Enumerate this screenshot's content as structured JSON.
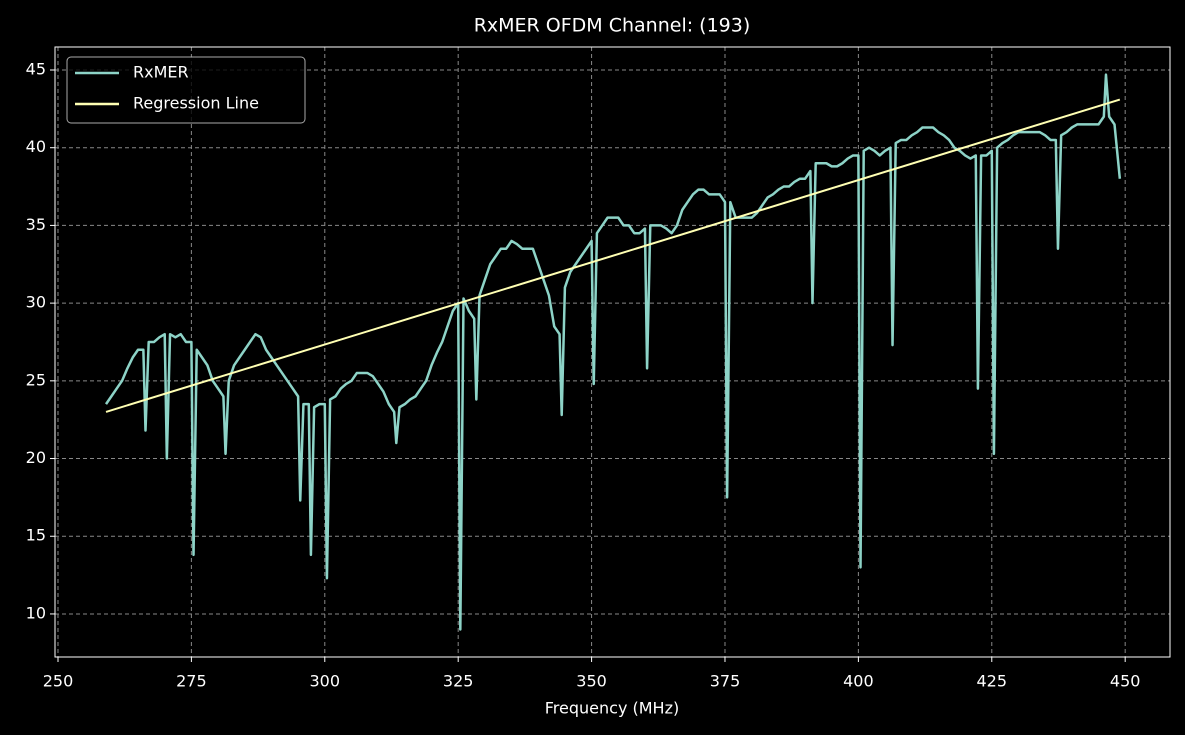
{
  "chart_data": {
    "type": "line",
    "title": "RxMER OFDM Channel: (193)",
    "x_label": "Frequency (MHz)",
    "series": [
      {
        "name": "RxMER",
        "color": "#8dd3c7",
        "x": [
          259,
          260,
          261,
          262,
          263,
          264,
          265,
          266,
          266.4,
          267,
          268,
          269,
          270,
          270.4,
          271,
          272,
          273,
          274,
          275,
          275.4,
          276,
          277,
          278,
          279,
          280,
          281,
          281.4,
          282,
          283,
          284,
          285,
          286,
          287,
          288,
          289,
          290,
          291,
          292,
          293,
          294,
          295,
          295.4,
          296,
          297,
          297.4,
          298,
          299,
          300,
          300.4,
          301,
          302,
          303,
          304,
          305,
          306,
          307,
          308,
          309,
          310,
          311,
          312,
          313,
          313.4,
          314,
          315,
          316,
          317,
          318,
          319,
          320,
          321,
          322,
          323,
          324,
          325,
          325.4,
          326,
          327,
          328,
          328.4,
          329,
          330,
          331,
          332,
          333,
          334,
          335,
          336,
          337,
          338,
          339,
          340,
          341,
          342,
          343,
          344,
          344.4,
          345,
          346,
          347,
          348,
          349,
          350,
          350.4,
          351,
          352,
          353,
          354,
          355,
          356,
          357,
          358,
          359,
          360,
          360.4,
          361,
          362,
          363,
          364,
          365,
          366,
          367,
          368,
          369,
          370,
          371,
          372,
          373,
          374,
          375,
          375.4,
          376,
          377,
          378,
          379,
          380,
          381,
          382,
          383,
          384,
          385,
          386,
          387,
          388,
          389,
          390,
          391,
          391.4,
          392,
          393,
          394,
          395,
          396,
          397,
          398,
          399,
          400,
          400.4,
          401,
          402,
          403,
          404,
          405,
          406,
          406.4,
          407,
          408,
          409,
          410,
          411,
          412,
          413,
          414,
          415,
          416,
          417,
          418,
          419,
          420,
          421,
          422,
          422.4,
          423,
          424,
          425,
          425.4,
          426,
          427,
          428,
          429,
          430,
          431,
          432,
          433,
          434,
          435,
          436,
          437,
          437.4,
          438,
          439,
          440,
          441,
          442,
          443,
          444,
          445,
          446,
          446.4,
          447,
          448,
          449
        ],
        "values": [
          23.5,
          24,
          24.5,
          25,
          25.8,
          26.5,
          27,
          27,
          21.8,
          27.5,
          27.5,
          27.8,
          28,
          20,
          28,
          27.8,
          28,
          27.5,
          27.5,
          13.8,
          27,
          26.5,
          26,
          25,
          24.5,
          24,
          20.3,
          25,
          26,
          26.5,
          27,
          27.5,
          28,
          27.8,
          27,
          26.5,
          26,
          25.5,
          25,
          24.5,
          24,
          17.3,
          23.5,
          23.5,
          13.8,
          23.3,
          23.5,
          23.5,
          12.3,
          23.8,
          24,
          24.5,
          24.8,
          25,
          25.5,
          25.5,
          25.5,
          25.3,
          24.8,
          24.3,
          23.5,
          23,
          21,
          23.3,
          23.5,
          23.8,
          24,
          24.5,
          25,
          26,
          26.8,
          27.5,
          28.5,
          29.5,
          30,
          9,
          30.3,
          29.5,
          29,
          23.8,
          30.5,
          31.5,
          32.5,
          33,
          33.5,
          33.5,
          34,
          33.8,
          33.5,
          33.5,
          33.5,
          32.5,
          31.5,
          30.5,
          28.5,
          28,
          22.8,
          31,
          32,
          32.5,
          33,
          33.5,
          34,
          24.8,
          34.5,
          35,
          35.5,
          35.5,
          35.5,
          35,
          35,
          34.5,
          34.5,
          34.8,
          25.8,
          35,
          35,
          35,
          34.8,
          34.5,
          35,
          36,
          36.5,
          37,
          37.3,
          37.3,
          37,
          37,
          37,
          36.5,
          17.5,
          36.5,
          35.5,
          35.5,
          35.5,
          35.5,
          35.8,
          36.3,
          36.8,
          37,
          37.3,
          37.5,
          37.5,
          37.8,
          38,
          38,
          38.5,
          30,
          39,
          39,
          39,
          38.8,
          38.8,
          39,
          39.3,
          39.5,
          39.5,
          13,
          39.8,
          40,
          39.8,
          39.5,
          39.8,
          40,
          27.3,
          40.3,
          40.5,
          40.5,
          40.8,
          41,
          41.3,
          41.3,
          41.3,
          41,
          40.8,
          40.5,
          40,
          39.8,
          39.5,
          39.3,
          39.5,
          24.5,
          39.5,
          39.5,
          39.8,
          20.3,
          40,
          40.3,
          40.5,
          40.8,
          41,
          41,
          41,
          41,
          41,
          40.8,
          40.5,
          40.5,
          33.5,
          40.8,
          41,
          41.3,
          41.5,
          41.5,
          41.5,
          41.5,
          41.5,
          42,
          44.7,
          42,
          41.5,
          38
        ]
      },
      {
        "name": "Regression Line",
        "color": "#ffffb3",
        "x": [
          259,
          449
        ],
        "values": [
          23,
          43.1
        ]
      }
    ],
    "xlim": [
      249.44,
      458.4
    ],
    "ylim": [
      7.23,
      46.48
    ],
    "xticks": [
      250,
      275,
      300,
      325,
      350,
      375,
      400,
      425,
      450
    ],
    "yticks": [
      10,
      15,
      20,
      25,
      30,
      35,
      40,
      45
    ],
    "grid": true,
    "legend": "upper left"
  }
}
